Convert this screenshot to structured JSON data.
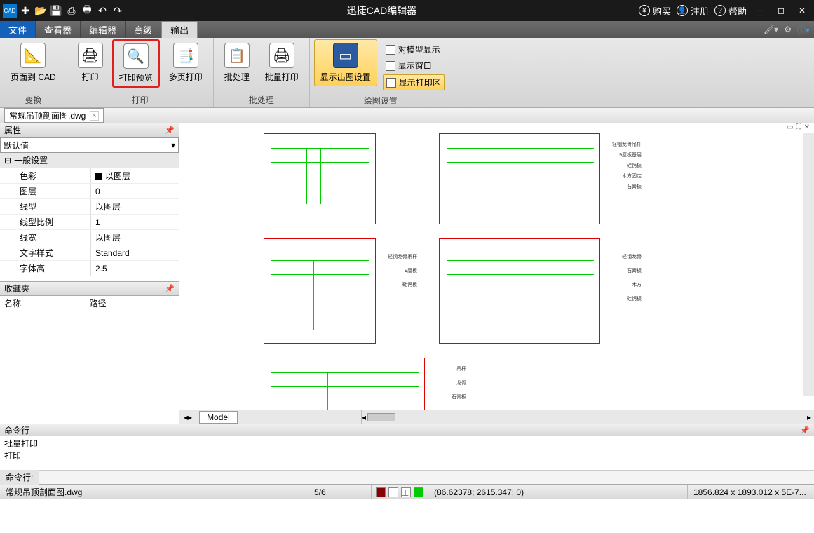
{
  "app": {
    "title": "迅捷CAD编辑器"
  },
  "titlebar": {
    "buy": "购买",
    "register": "注册",
    "help": "帮助"
  },
  "menu": {
    "file": "文件",
    "viewer": "查看器",
    "editor": "编辑器",
    "advanced": "高级",
    "output": "输出"
  },
  "ribbon": {
    "page_to_cad": "页面到 CAD",
    "group_transform": "变换",
    "print": "打印",
    "print_preview": "打印预览",
    "multi_print": "多页打印",
    "group_print": "打印",
    "batch": "批处理",
    "batch_print": "批量打印",
    "group_batch": "批处理",
    "plot_settings": "显示出图设置",
    "group_plot": "绘图设置",
    "chk_model": "对模型显示",
    "chk_window": "显示窗口",
    "chk_printarea": "显示打印区"
  },
  "filetab": {
    "name": "常规吊顶剖面图.dwg"
  },
  "props": {
    "panel": "属性",
    "default": "默认值",
    "section": "一般设置",
    "rows": [
      {
        "k": "色彩",
        "v": "以图层",
        "swatch": true
      },
      {
        "k": "图层",
        "v": "0"
      },
      {
        "k": "线型",
        "v": "以图层"
      },
      {
        "k": "线型比例",
        "v": "1"
      },
      {
        "k": "线宽",
        "v": "以图层"
      },
      {
        "k": "文字样式",
        "v": "Standard"
      },
      {
        "k": "字体高",
        "v": "2.5"
      }
    ]
  },
  "fav": {
    "panel": "收藏夹",
    "col1": "名称",
    "col2": "路径"
  },
  "model": {
    "tab": "Model"
  },
  "cmd": {
    "panel": "命令行",
    "history": [
      "批量打印",
      "打印"
    ],
    "label": "命令行:"
  },
  "status": {
    "file": "常规吊顶剖面图.dwg",
    "pages": "5/6",
    "coords": "(86.62378; 2615.347; 0)",
    "dims": "1856.824 x 1893.012 x 5E-7..."
  },
  "colors": {
    "title_bg": "#1a1a1a",
    "file_tab": "#1560b8",
    "ribbon_bg": "#e0e0e0",
    "highlight_border": "#e02020",
    "gold_bg": "#ffd159",
    "drawing_border": "#d00000",
    "cad_line": "#00cc00"
  }
}
